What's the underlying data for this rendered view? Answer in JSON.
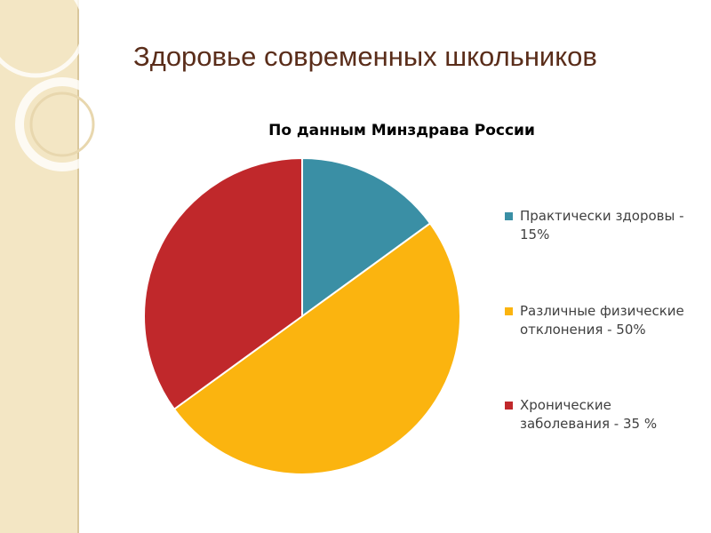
{
  "slide_title": "Здоровье современных школьников",
  "chart_data": {
    "type": "pie",
    "title": "По данным Минздрава России",
    "series": [
      {
        "name": "Практически здоровы - 15%",
        "color": "#3a8fa5",
        "values": [
          15
        ]
      },
      {
        "name": "Различные физические отклонения - 50%",
        "color": "#fbb40f",
        "values": [
          50
        ]
      },
      {
        "name": "Хронические заболевания - 35 %",
        "color": "#c0282b",
        "values": [
          35
        ]
      }
    ],
    "legend": "right"
  }
}
